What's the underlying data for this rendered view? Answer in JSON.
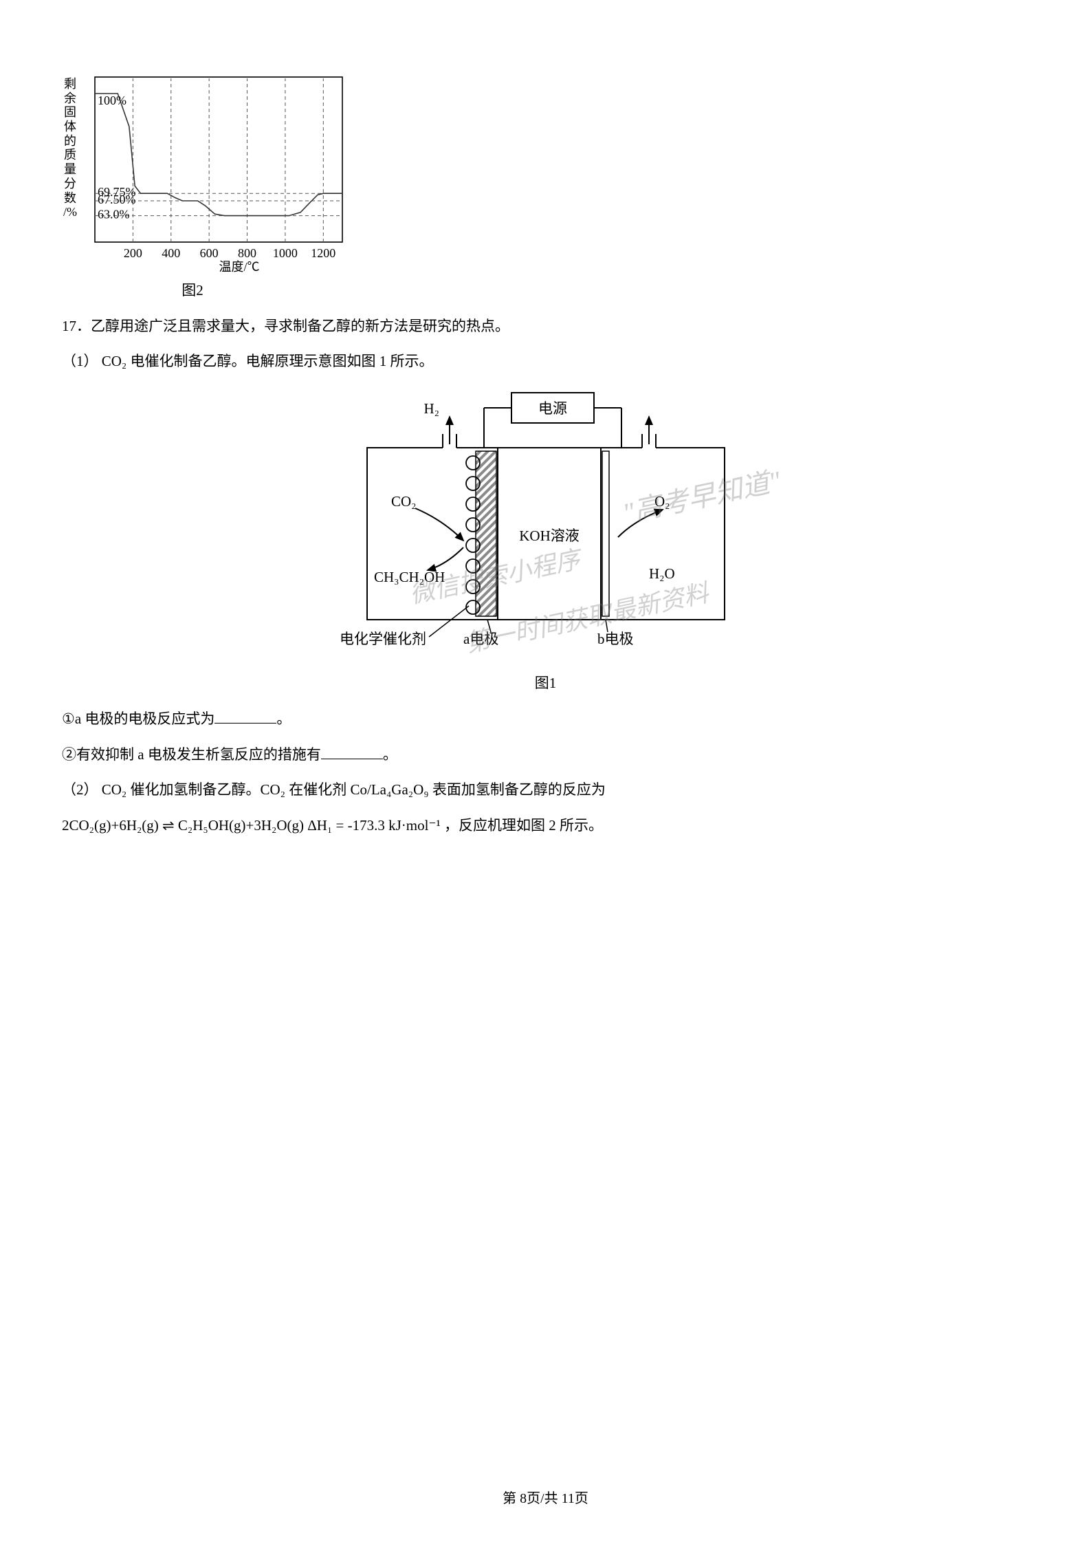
{
  "chart2": {
    "type": "line",
    "caption": "图2",
    "ylabel_vertical": "剩余固体的质量分数",
    "yunit": "/%",
    "xlabel": "温度/℃",
    "xlim": [
      0,
      1300
    ],
    "ylim": [
      55,
      105
    ],
    "xticks": [
      200,
      400,
      600,
      800,
      1000,
      1200
    ],
    "ylabels_inside": [
      "100%",
      "69.75%",
      "67.50%",
      "63.0%"
    ],
    "ylabel_yvals": [
      100,
      69.75,
      67.5,
      63.0
    ],
    "line_color": "#333333",
    "line_width": 1.6,
    "dash_color": "#555555",
    "dash_pattern": "5,4",
    "background_color": "#ffffff",
    "axis_color": "#000000",
    "axis_width": 1.6,
    "label_fontsize": 18,
    "dash_x": [
      200,
      400,
      600,
      800,
      1000,
      1200
    ],
    "curve_points": [
      {
        "x": 0,
        "y": 100
      },
      {
        "x": 120,
        "y": 100
      },
      {
        "x": 180,
        "y": 90
      },
      {
        "x": 210,
        "y": 72
      },
      {
        "x": 240,
        "y": 69.75
      },
      {
        "x": 380,
        "y": 69.75
      },
      {
        "x": 420,
        "y": 68.5
      },
      {
        "x": 460,
        "y": 67.5
      },
      {
        "x": 540,
        "y": 67.5
      },
      {
        "x": 580,
        "y": 66
      },
      {
        "x": 630,
        "y": 63.5
      },
      {
        "x": 680,
        "y": 63.0
      },
      {
        "x": 1020,
        "y": 63.0
      },
      {
        "x": 1080,
        "y": 64
      },
      {
        "x": 1130,
        "y": 67
      },
      {
        "x": 1170,
        "y": 69.3
      },
      {
        "x": 1200,
        "y": 69.75
      },
      {
        "x": 1300,
        "y": 69.75
      }
    ]
  },
  "q17": {
    "intro": "17．乙醇用途广泛且需求量大，寻求制备乙醇的新方法是研究的热点。",
    "p1": "（1）  CO₂ 电催化制备乙醇。电解原理示意图如图 1 所示。",
    "sub1": "①a 电极的电极反应式为",
    "sub1_end": "。",
    "sub2": "②有效抑制 a 电极发生析氢反应的措施有",
    "sub2_end": "。",
    "p2_a": "（2）  CO₂ 催化加氢制备乙醇。CO₂ 在催化剂 Co/La₄Ga₂O₉ 表面加氢制备乙醇的反应为",
    "eq": "2CO₂(g)+6H₂(g) ⇌ C₂H₅OH(g)+3H₂O(g)    ΔH₁ = -173.3 kJ·mol⁻¹",
    "eq_tail": " ，反应机理如图 2 所示。"
  },
  "diagram1": {
    "caption": "图1",
    "power": "电源",
    "h2": "H₂",
    "co2": "CO₂",
    "ethanol": "CH₃CH₂OH",
    "koh": "KOH溶液",
    "o2": "O₂",
    "h2o": "H₂O",
    "catalyst_label": "电化学催化剂",
    "a_label": "a电极",
    "b_label": "b电极",
    "stroke_color": "#000000",
    "stroke_width": 2,
    "fill_bg": "#ffffff",
    "hatch_color": "#8a8a8a",
    "label_fontsize": 21
  },
  "watermarks": {
    "w1": "\"高考早知道\"",
    "w2": "微信搜索小程序",
    "w3": "第一时间获取最新资料",
    "color": "rgba(120,120,120,0.35)",
    "fontsize_large": 40,
    "fontsize_mid": 36
  },
  "footer": "第 8页/共 11页"
}
